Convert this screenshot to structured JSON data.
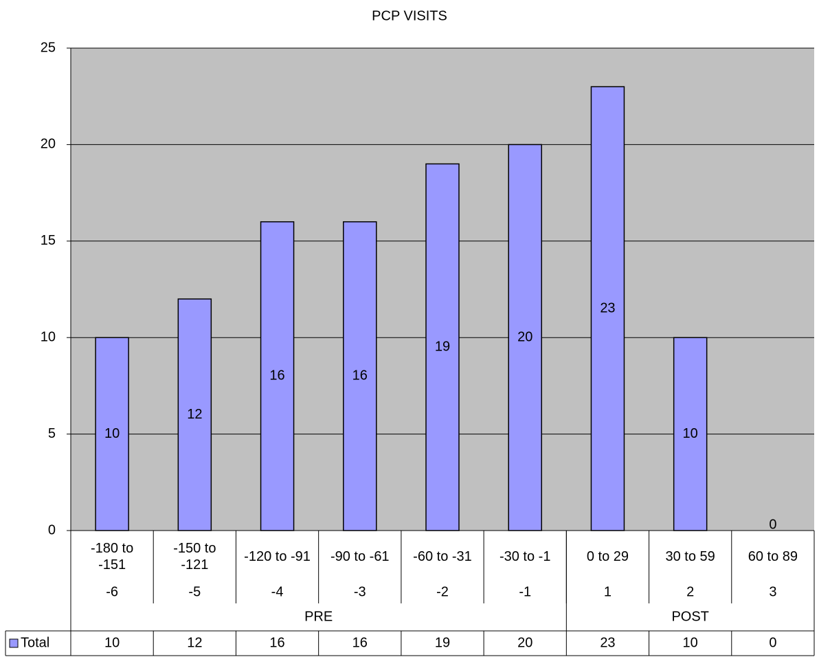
{
  "chart_data": {
    "type": "bar",
    "title": "PCP VISITS",
    "categories": [
      "-180 to -151",
      "-150 to -121",
      "-120 to -91",
      "-90 to -61",
      "-60 to -31",
      "-30 to -1",
      "0 to 29",
      "30 to 59",
      "60 to 89"
    ],
    "category_numbers": [
      -6,
      -5,
      -4,
      -3,
      -2,
      -1,
      1,
      2,
      3
    ],
    "groups": [
      "PRE",
      "POST"
    ],
    "series": [
      {
        "name": "Total",
        "color": "#9999ff",
        "values": [
          10,
          12,
          16,
          16,
          19,
          20,
          23,
          10,
          0
        ]
      }
    ],
    "ylim": [
      0,
      25
    ],
    "yticks": [
      0,
      5,
      10,
      15,
      20,
      25
    ],
    "grid": true,
    "plot_background": "#c0c0c0"
  }
}
